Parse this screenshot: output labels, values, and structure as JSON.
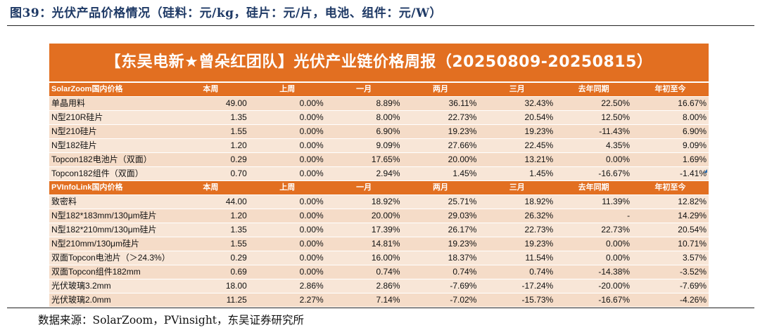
{
  "figure_title": "图39：光伏产品价格情况（硅料：元/kg，硅片：元/片，电池、组件：元/W）",
  "banner_title": "【东吴电新★曾朵红团队】光伏产业链价格周报（20250809-20250815）",
  "columns": [
    "本周",
    "上周",
    "一月",
    "两月",
    "三月",
    "去年同期",
    "年初至今"
  ],
  "sections": [
    {
      "header": "SolarZoom国内价格",
      "rows": [
        {
          "name": "单晶用料",
          "values": [
            "49.00",
            "0.00%",
            "8.89%",
            "36.11%",
            "32.43%",
            "22.50%",
            "16.67%"
          ]
        },
        {
          "name": "N型210R硅片",
          "values": [
            "1.35",
            "0.00%",
            "8.00%",
            "22.73%",
            "20.54%",
            "12.50%",
            "8.00%"
          ]
        },
        {
          "name": "N型210硅片",
          "values": [
            "1.55",
            "0.00%",
            "6.90%",
            "19.23%",
            "19.23%",
            "-11.43%",
            "6.90%"
          ]
        },
        {
          "name": "N型182硅片",
          "values": [
            "1.20",
            "0.00%",
            "9.09%",
            "27.66%",
            "22.45%",
            "4.35%",
            "9.09%"
          ]
        },
        {
          "name": "Topcon182电池片（双面）",
          "values": [
            "0.29",
            "0.00%",
            "17.65%",
            "20.00%",
            "13.21%",
            "0.00%",
            "1.69%"
          ]
        },
        {
          "name": "Topcon182组件（双面）",
          "values": [
            "0.70",
            "0.00%",
            "2.94%",
            "1.45%",
            "1.45%",
            "-16.67%",
            "-1.41%"
          ]
        }
      ]
    },
    {
      "header": "PVInfoLink国内价格",
      "rows": [
        {
          "name": "致密料",
          "values": [
            "44.00",
            "0.00%",
            "18.92%",
            "25.71%",
            "18.92%",
            "11.39%",
            "12.82%"
          ]
        },
        {
          "name": "N型182*183mm/130μm硅片",
          "values": [
            "1.20",
            "0.00%",
            "20.00%",
            "29.03%",
            "26.32%",
            "-",
            "14.29%"
          ]
        },
        {
          "name": "N型182*210mm/130μm硅片",
          "values": [
            "1.35",
            "0.00%",
            "17.39%",
            "26.17%",
            "22.73%",
            "22.73%",
            "20.54%"
          ]
        },
        {
          "name": "N型210mm/130μm硅片",
          "values": [
            "1.55",
            "0.00%",
            "14.81%",
            "19.23%",
            "19.23%",
            "0.00%",
            "10.71%"
          ]
        },
        {
          "name": "双面Topcon电池片（＞24.3%）",
          "values": [
            "0.29",
            "0.00%",
            "16.00%",
            "18.37%",
            "11.54%",
            "0.00%",
            "3.57%"
          ]
        },
        {
          "name": "双面Topcon组件182mm",
          "values": [
            "0.69",
            "0.00%",
            "0.74%",
            "0.74%",
            "0.74%",
            "-14.38%",
            "-3.52%"
          ]
        },
        {
          "name": "光伏玻璃3.2mm",
          "values": [
            "18.00",
            "2.86%",
            "2.86%",
            "-7.69%",
            "-17.24%",
            "-20.00%",
            "-7.69%"
          ]
        },
        {
          "name": "光伏玻璃2.0mm",
          "values": [
            "11.25",
            "2.27%",
            "7.14%",
            "-7.02%",
            "-15.73%",
            "-16.67%",
            "-4.26%"
          ]
        }
      ]
    }
  ],
  "source": "数据来源：SolarZoom，PVinsight，东吴证券研究所",
  "colors": {
    "accent": "#e26f21",
    "row_fill": "#f8e6d7",
    "title_blue": "#1f3a66"
  }
}
